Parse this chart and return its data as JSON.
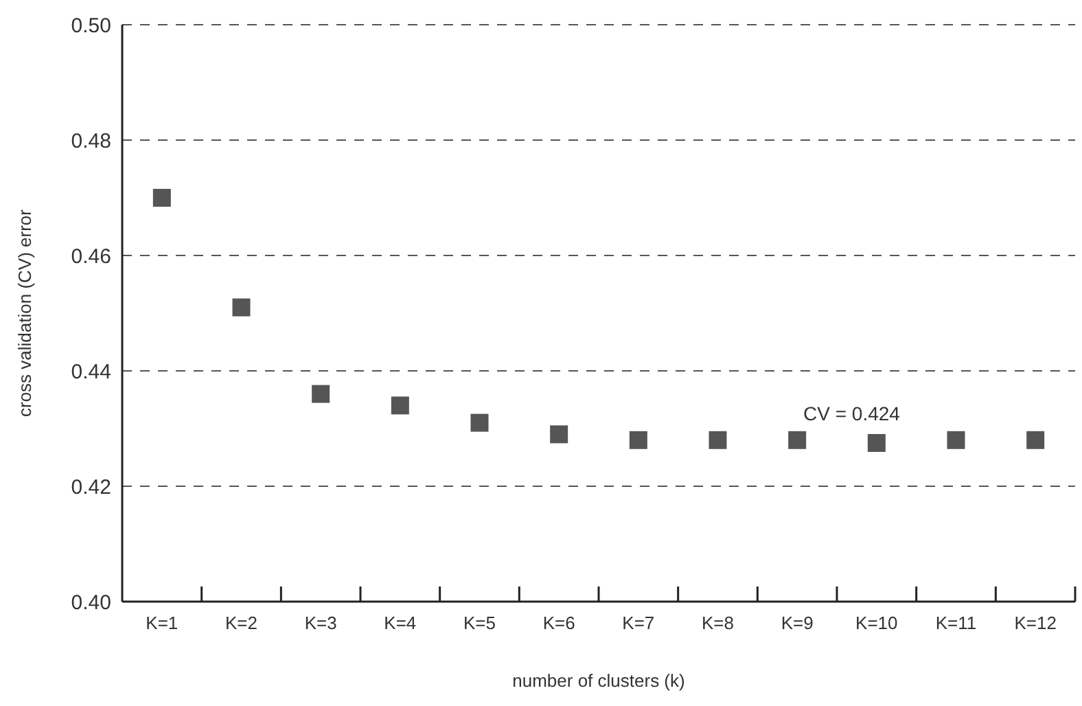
{
  "chart_data": {
    "type": "scatter",
    "xlabel": "number of clusters (k)",
    "ylabel": "cross validation (CV) error",
    "categories": [
      "K=1",
      "K=2",
      "K=3",
      "K=4",
      "K=5",
      "K=6",
      "K=7",
      "K=8",
      "K=9",
      "K=10",
      "K=11",
      "K=12"
    ],
    "values": [
      0.47,
      0.451,
      0.436,
      0.434,
      0.431,
      0.429,
      0.428,
      0.428,
      0.428,
      0.4275,
      0.428,
      0.428
    ],
    "color": "#555555",
    "marker": "square",
    "ylim": [
      0.4,
      0.5
    ],
    "yticks": [
      {
        "value": 0.4,
        "label": "0.40"
      },
      {
        "value": 0.42,
        "label": "0.42"
      },
      {
        "value": 0.44,
        "label": "0.44"
      },
      {
        "value": 0.46,
        "label": "0.46"
      },
      {
        "value": 0.48,
        "label": "0.48"
      },
      {
        "value": 0.5,
        "label": "0.50"
      }
    ],
    "grid": "y",
    "annotations": [
      "CV = 0.424"
    ]
  }
}
